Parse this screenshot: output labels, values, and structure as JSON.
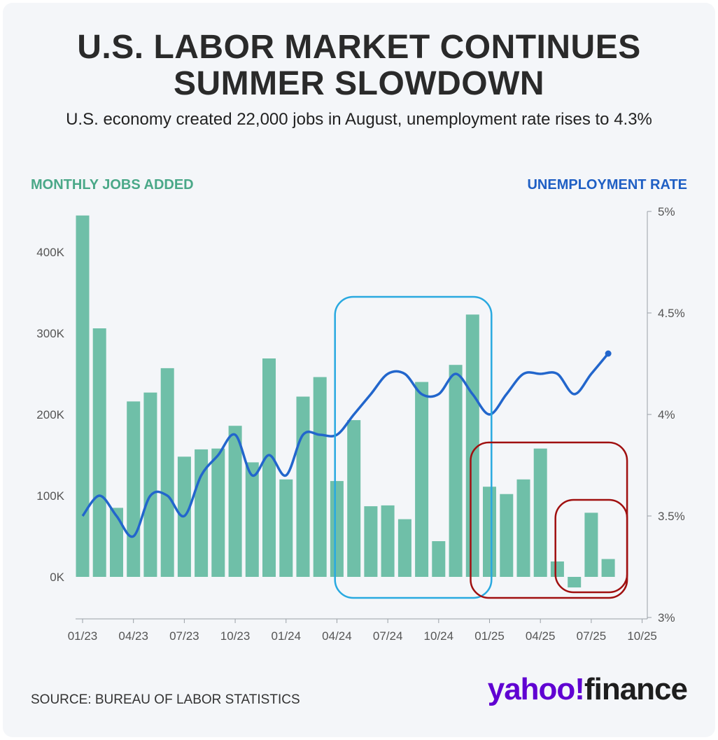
{
  "colors": {
    "bars": "#6fbfa8",
    "line": "#2266cc",
    "left_label": "#4aa888",
    "right_label": "#1f5fc4",
    "box_blue": "#29a9e0",
    "box_red": "#a01010",
    "axis_text": "#555555",
    "brand": "#6001d2"
  },
  "header": {
    "title_line1": "U.S. LABOR MARKET CONTINUES",
    "title_line2": "SUMMER SLOWDOWN",
    "subtitle": "U.S. economy created 22,000 jobs in August, unemployment rate rises to 4.3%"
  },
  "footer": {
    "source": "SOURCE: BUREAU OF LABOR STATISTICS",
    "logo_yahoo": "yahoo!",
    "logo_finance": "finance"
  },
  "chart_data": {
    "type": "bar",
    "left_axis_title": "MONTHLY JOBS ADDED",
    "right_axis_title": "UNEMPLOYMENT RATE",
    "x_ticks": [
      "01/23",
      "04/23",
      "07/23",
      "10/23",
      "01/24",
      "04/24",
      "07/24",
      "10/24",
      "01/25",
      "04/25",
      "07/25",
      "10/25"
    ],
    "y_left_ticks": [
      "0K",
      "100K",
      "200K",
      "300K",
      "400K"
    ],
    "y_left_range": [
      -50000,
      450000
    ],
    "y_right_ticks": [
      "3%",
      "3.5%",
      "4%",
      "4.5%",
      "5%"
    ],
    "y_right_range": [
      3.0,
      5.0
    ],
    "months": [
      "2023-01",
      "2023-02",
      "2023-03",
      "2023-04",
      "2023-05",
      "2023-06",
      "2023-07",
      "2023-08",
      "2023-09",
      "2023-10",
      "2023-11",
      "2023-12",
      "2024-01",
      "2024-02",
      "2024-03",
      "2024-04",
      "2024-05",
      "2024-06",
      "2024-07",
      "2024-08",
      "2024-09",
      "2024-10",
      "2024-11",
      "2024-12",
      "2025-01",
      "2025-02",
      "2025-03",
      "2025-04",
      "2025-05",
      "2025-06",
      "2025-07",
      "2025-08"
    ],
    "series": [
      {
        "name": "MONTHLY JOBS ADDED",
        "values": [
          445000,
          306000,
          85000,
          216000,
          227000,
          257000,
          148000,
          157000,
          158000,
          186000,
          141000,
          269000,
          120000,
          222000,
          246000,
          118000,
          193000,
          87000,
          88000,
          71000,
          240000,
          44000,
          261000,
          323000,
          111000,
          102000,
          120000,
          158000,
          19000,
          -13000,
          79000,
          22000
        ]
      },
      {
        "name": "UNEMPLOYMENT RATE",
        "values": [
          3.5,
          3.6,
          3.5,
          3.4,
          3.6,
          3.6,
          3.5,
          3.7,
          3.8,
          3.9,
          3.7,
          3.8,
          3.7,
          3.9,
          3.9,
          3.9,
          4.0,
          4.1,
          4.2,
          4.2,
          4.1,
          4.1,
          4.2,
          4.1,
          4.0,
          4.1,
          4.2,
          4.2,
          4.2,
          4.1,
          4.2,
          4.3
        ]
      }
    ],
    "highlights": [
      {
        "months": [
          "2024-05",
          "2024-12"
        ],
        "color": "blue"
      },
      {
        "months": [
          "2025-01",
          "2025-08"
        ],
        "color": "red"
      },
      {
        "months": [
          "2025-06",
          "2025-08"
        ],
        "color": "red"
      }
    ],
    "grid": false
  }
}
